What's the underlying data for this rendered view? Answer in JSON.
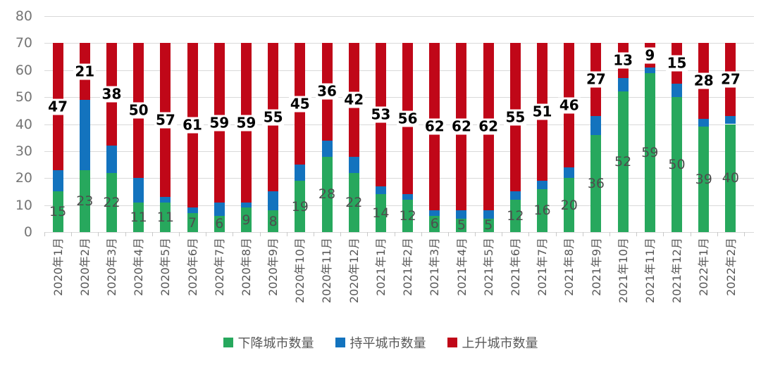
{
  "chart_data": {
    "type": "bar",
    "stacked": true,
    "title": "",
    "categories": [
      "2020年1月",
      "2020年2月",
      "2020年3月",
      "2020年4月",
      "2020年5月",
      "2020年6月",
      "2020年7月",
      "2020年8月",
      "2020年9月",
      "2020年10月",
      "2020年11月",
      "2020年12月",
      "2021年1月",
      "2021年2月",
      "2021年3月",
      "2021年4月",
      "2021年5月",
      "2021年6月",
      "2021年7月",
      "2021年8月",
      "2021年9月",
      "2021年10月",
      "2021年11月",
      "2021年12月",
      "2022年1月",
      "2022年2月"
    ],
    "series": [
      {
        "key": "down",
        "name": "下降城市数量",
        "color": "#27A85D",
        "label_color": "#4D4D4D",
        "show_labels": true,
        "values": [
          15,
          23,
          22,
          11,
          11,
          7,
          6,
          9,
          8,
          19,
          28,
          22,
          14,
          12,
          6,
          5,
          5,
          12,
          16,
          20,
          36,
          52,
          59,
          50,
          39,
          40
        ]
      },
      {
        "key": "flat",
        "name": "持平城市数量",
        "color": "#1373BE",
        "show_labels": false,
        "values": [
          8,
          26,
          10,
          9,
          2,
          2,
          5,
          2,
          7,
          6,
          6,
          6,
          3,
          2,
          2,
          3,
          3,
          3,
          3,
          4,
          7,
          5,
          2,
          5,
          3,
          3
        ]
      },
      {
        "key": "up",
        "name": "上升城市数量",
        "color": "#C00718",
        "label_color": "#000000",
        "show_labels": true,
        "values": [
          47,
          21,
          38,
          50,
          57,
          61,
          59,
          59,
          55,
          45,
          36,
          42,
          53,
          56,
          62,
          62,
          62,
          55,
          51,
          46,
          27,
          13,
          9,
          15,
          28,
          27
        ]
      }
    ],
    "ylim": [
      0,
      80
    ],
    "yticks": [
      0,
      10,
      20,
      30,
      40,
      50,
      60,
      70,
      80
    ],
    "grid": true,
    "legend_position": "bottom"
  }
}
